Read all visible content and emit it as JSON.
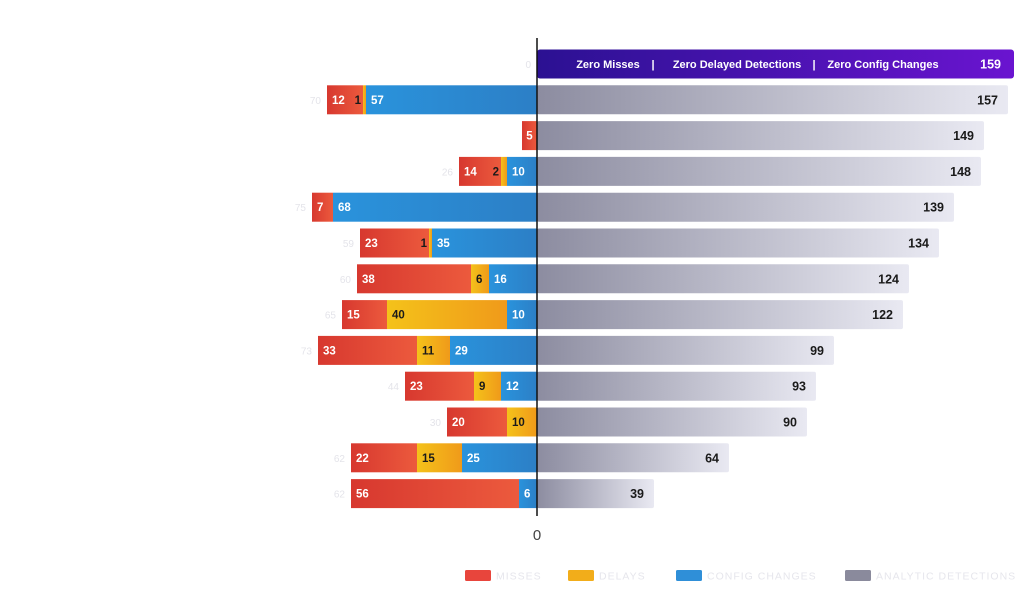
{
  "chart_data": {
    "type": "bar",
    "orientation": "horizontal-diverging",
    "zero_label": "0",
    "banner": {
      "items": [
        "Zero Misses",
        "|",
        "Zero Delayed Detections",
        "|",
        "Zero Config Changes"
      ],
      "value": "159"
    },
    "left_series": [
      {
        "name": "Misses",
        "key": "misses",
        "color": "#e8453c"
      },
      {
        "name": "Delays",
        "key": "delays",
        "color": "#f2ad1a"
      },
      {
        "name": "Config Changes",
        "key": "config",
        "color": "#2f8fd8"
      }
    ],
    "right_series": {
      "name": "Analytic Detections",
      "key": "detections",
      "color": "#9a9aac"
    },
    "rows": [
      {
        "faint": "0",
        "misses": 0,
        "delays": 0,
        "config": 0,
        "detections": 159
      },
      {
        "faint": "70",
        "misses": 12,
        "delays": 1,
        "config": 57,
        "detections": 157
      },
      {
        "faint": "",
        "misses": 5,
        "delays": 0,
        "config": 0,
        "detections": 149
      },
      {
        "faint": "26",
        "misses": 14,
        "delays": 2,
        "config": 10,
        "detections": 148
      },
      {
        "faint": "75",
        "misses": 7,
        "delays": 0,
        "config": 68,
        "detections": 139
      },
      {
        "faint": "59",
        "misses": 23,
        "delays": 1,
        "config": 35,
        "detections": 134
      },
      {
        "faint": "60",
        "misses": 38,
        "delays": 6,
        "config": 16,
        "detections": 124
      },
      {
        "faint": "65",
        "misses": 15,
        "delays": 40,
        "config": 10,
        "detections": 122
      },
      {
        "faint": "73",
        "misses": 33,
        "delays": 11,
        "config": 29,
        "detections": 99
      },
      {
        "faint": "44",
        "misses": 23,
        "delays": 9,
        "config": 12,
        "detections": 93
      },
      {
        "faint": "30",
        "misses": 20,
        "delays": 10,
        "config": 0,
        "detections": 90
      },
      {
        "faint": "62",
        "misses": 22,
        "delays": 15,
        "config": 25,
        "detections": 64
      },
      {
        "faint": "62",
        "misses": 56,
        "delays": 0,
        "config": 6,
        "detections": 39
      }
    ],
    "legend": [
      {
        "label": "MISSES",
        "color": "#e8453c"
      },
      {
        "label": "DELAYS",
        "color": "#f2ad1a"
      },
      {
        "label": "CONFIG CHANGES",
        "color": "#2f8fd8"
      },
      {
        "label": "ANALYTIC DETECTIONS",
        "color": "#8a8a9c"
      }
    ]
  }
}
